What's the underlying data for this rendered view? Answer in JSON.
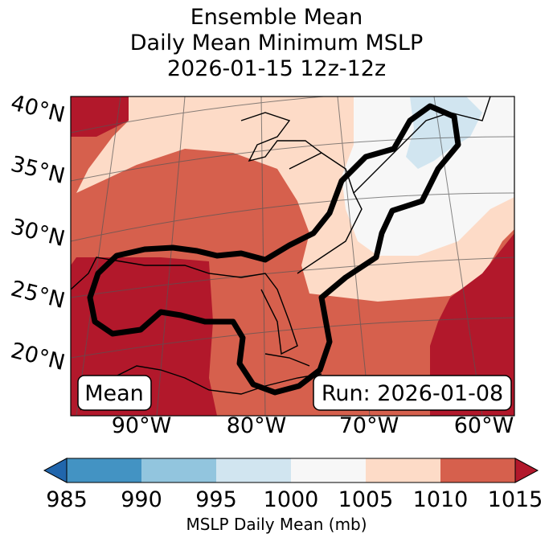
{
  "title": {
    "line1": "Ensemble Mean",
    "line2": "Daily Mean Minimum MSLP",
    "line3": "2026-01-15 12z-12z"
  },
  "map": {
    "lat_labels": [
      "40°N",
      "35°N",
      "30°N",
      "25°N",
      "20°N"
    ],
    "lon_labels": [
      "90°W",
      "80°W",
      "70°W",
      "60°W"
    ],
    "mean_box": "Mean",
    "run_box": "Run: 2026-01-08"
  },
  "colorbar": {
    "label": "MSLP Daily Mean (mb)",
    "ticks": [
      "985",
      "990",
      "995",
      "1000",
      "1005",
      "1010",
      "1015"
    ],
    "colors": [
      "#2166ac",
      "#4393c3",
      "#92c5de",
      "#d1e5f0",
      "#f7f7f7",
      "#fddbc7",
      "#d6604d",
      "#b2182b"
    ]
  }
}
